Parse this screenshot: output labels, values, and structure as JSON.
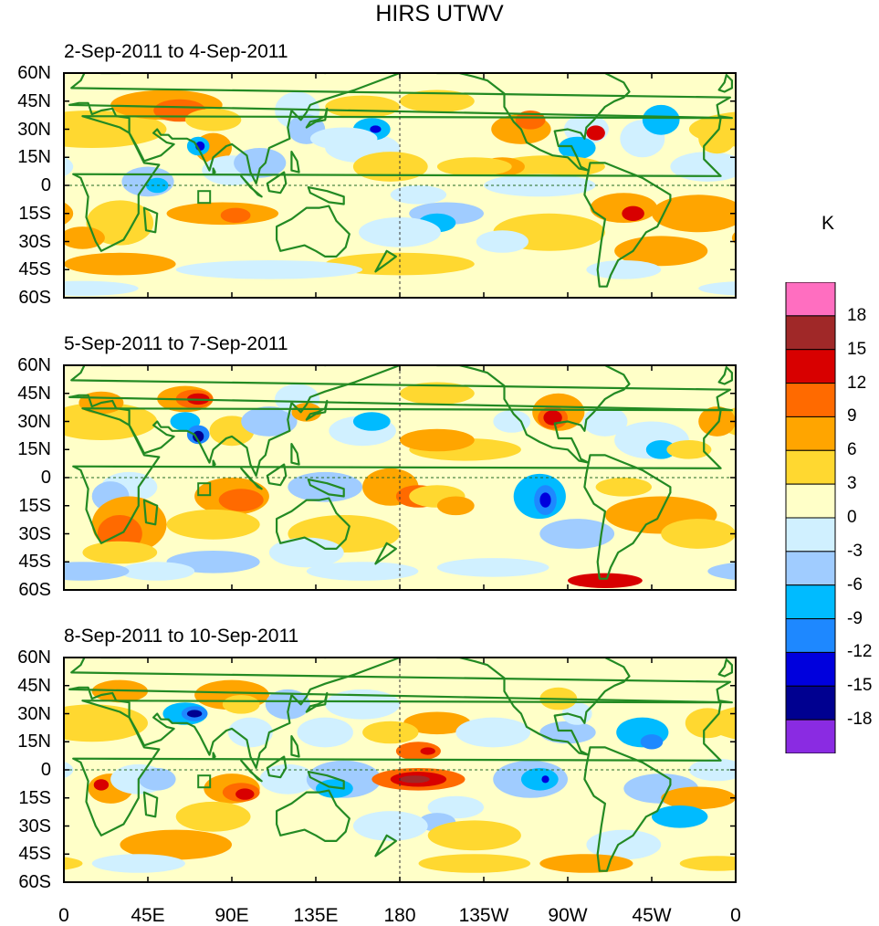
{
  "title": "HIRS UTWV",
  "panels": [
    {
      "title": "2-Sep-2011 to 4-Sep-2011"
    },
    {
      "title": "5-Sep-2011 to 7-Sep-2011"
    },
    {
      "title": "8-Sep-2011 to 10-Sep-2011"
    }
  ],
  "lat_labels": [
    "60N",
    "45N",
    "30N",
    "15N",
    "0",
    "15S",
    "30S",
    "45S",
    "60S"
  ],
  "lon_labels": [
    "0",
    "45E",
    "90E",
    "135E",
    "180",
    "135W",
    "90W",
    "45W",
    "0"
  ],
  "colorbar": {
    "unit": "K",
    "labels": [
      "18",
      "15",
      "12",
      "9",
      "6",
      "3",
      "0",
      "-3",
      "-6",
      "-9",
      "-12",
      "-15",
      "-18"
    ],
    "colors": [
      "#ff6ec0",
      "#a02828",
      "#d80000",
      "#ff6a00",
      "#ffa500",
      "#ffd830",
      "#ffffc8",
      "#d0f0ff",
      "#a0ccff",
      "#00bbff",
      "#1e88ff",
      "#0000dd",
      "#000090",
      "#8a2be2"
    ]
  },
  "map_colors": {
    "coast": "#238a23",
    "frame": "#000000"
  }
}
